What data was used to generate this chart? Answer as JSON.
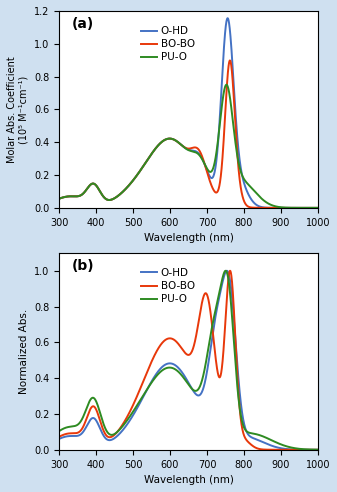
{
  "colors": {
    "OHD": "#4472C4",
    "BOBO": "#E8380A",
    "PUO": "#2E8B22"
  },
  "legend_labels": [
    "O-HD",
    "BO-BO",
    "PU-O"
  ],
  "panel_a_label": "(a)",
  "panel_b_label": "(b)",
  "xlabel": "Wavelength (nm)",
  "ylabel_a": "Molar Abs. Coefficient\n(10⁵ M⁻¹cm⁻¹)",
  "ylabel_b": "Normalized Abs.",
  "xlim": [
    300,
    1000
  ],
  "ylim_a": [
    0,
    1.2
  ],
  "ylim_b": [
    0,
    1.1
  ],
  "yticks_a": [
    0,
    0.2,
    0.4,
    0.6,
    0.8,
    1.0,
    1.2
  ],
  "yticks_b": [
    0,
    0.2,
    0.4,
    0.6,
    0.8,
    1.0
  ],
  "xticks": [
    300,
    400,
    500,
    600,
    700,
    800,
    900,
    1000
  ],
  "background": "#cfe0f0"
}
